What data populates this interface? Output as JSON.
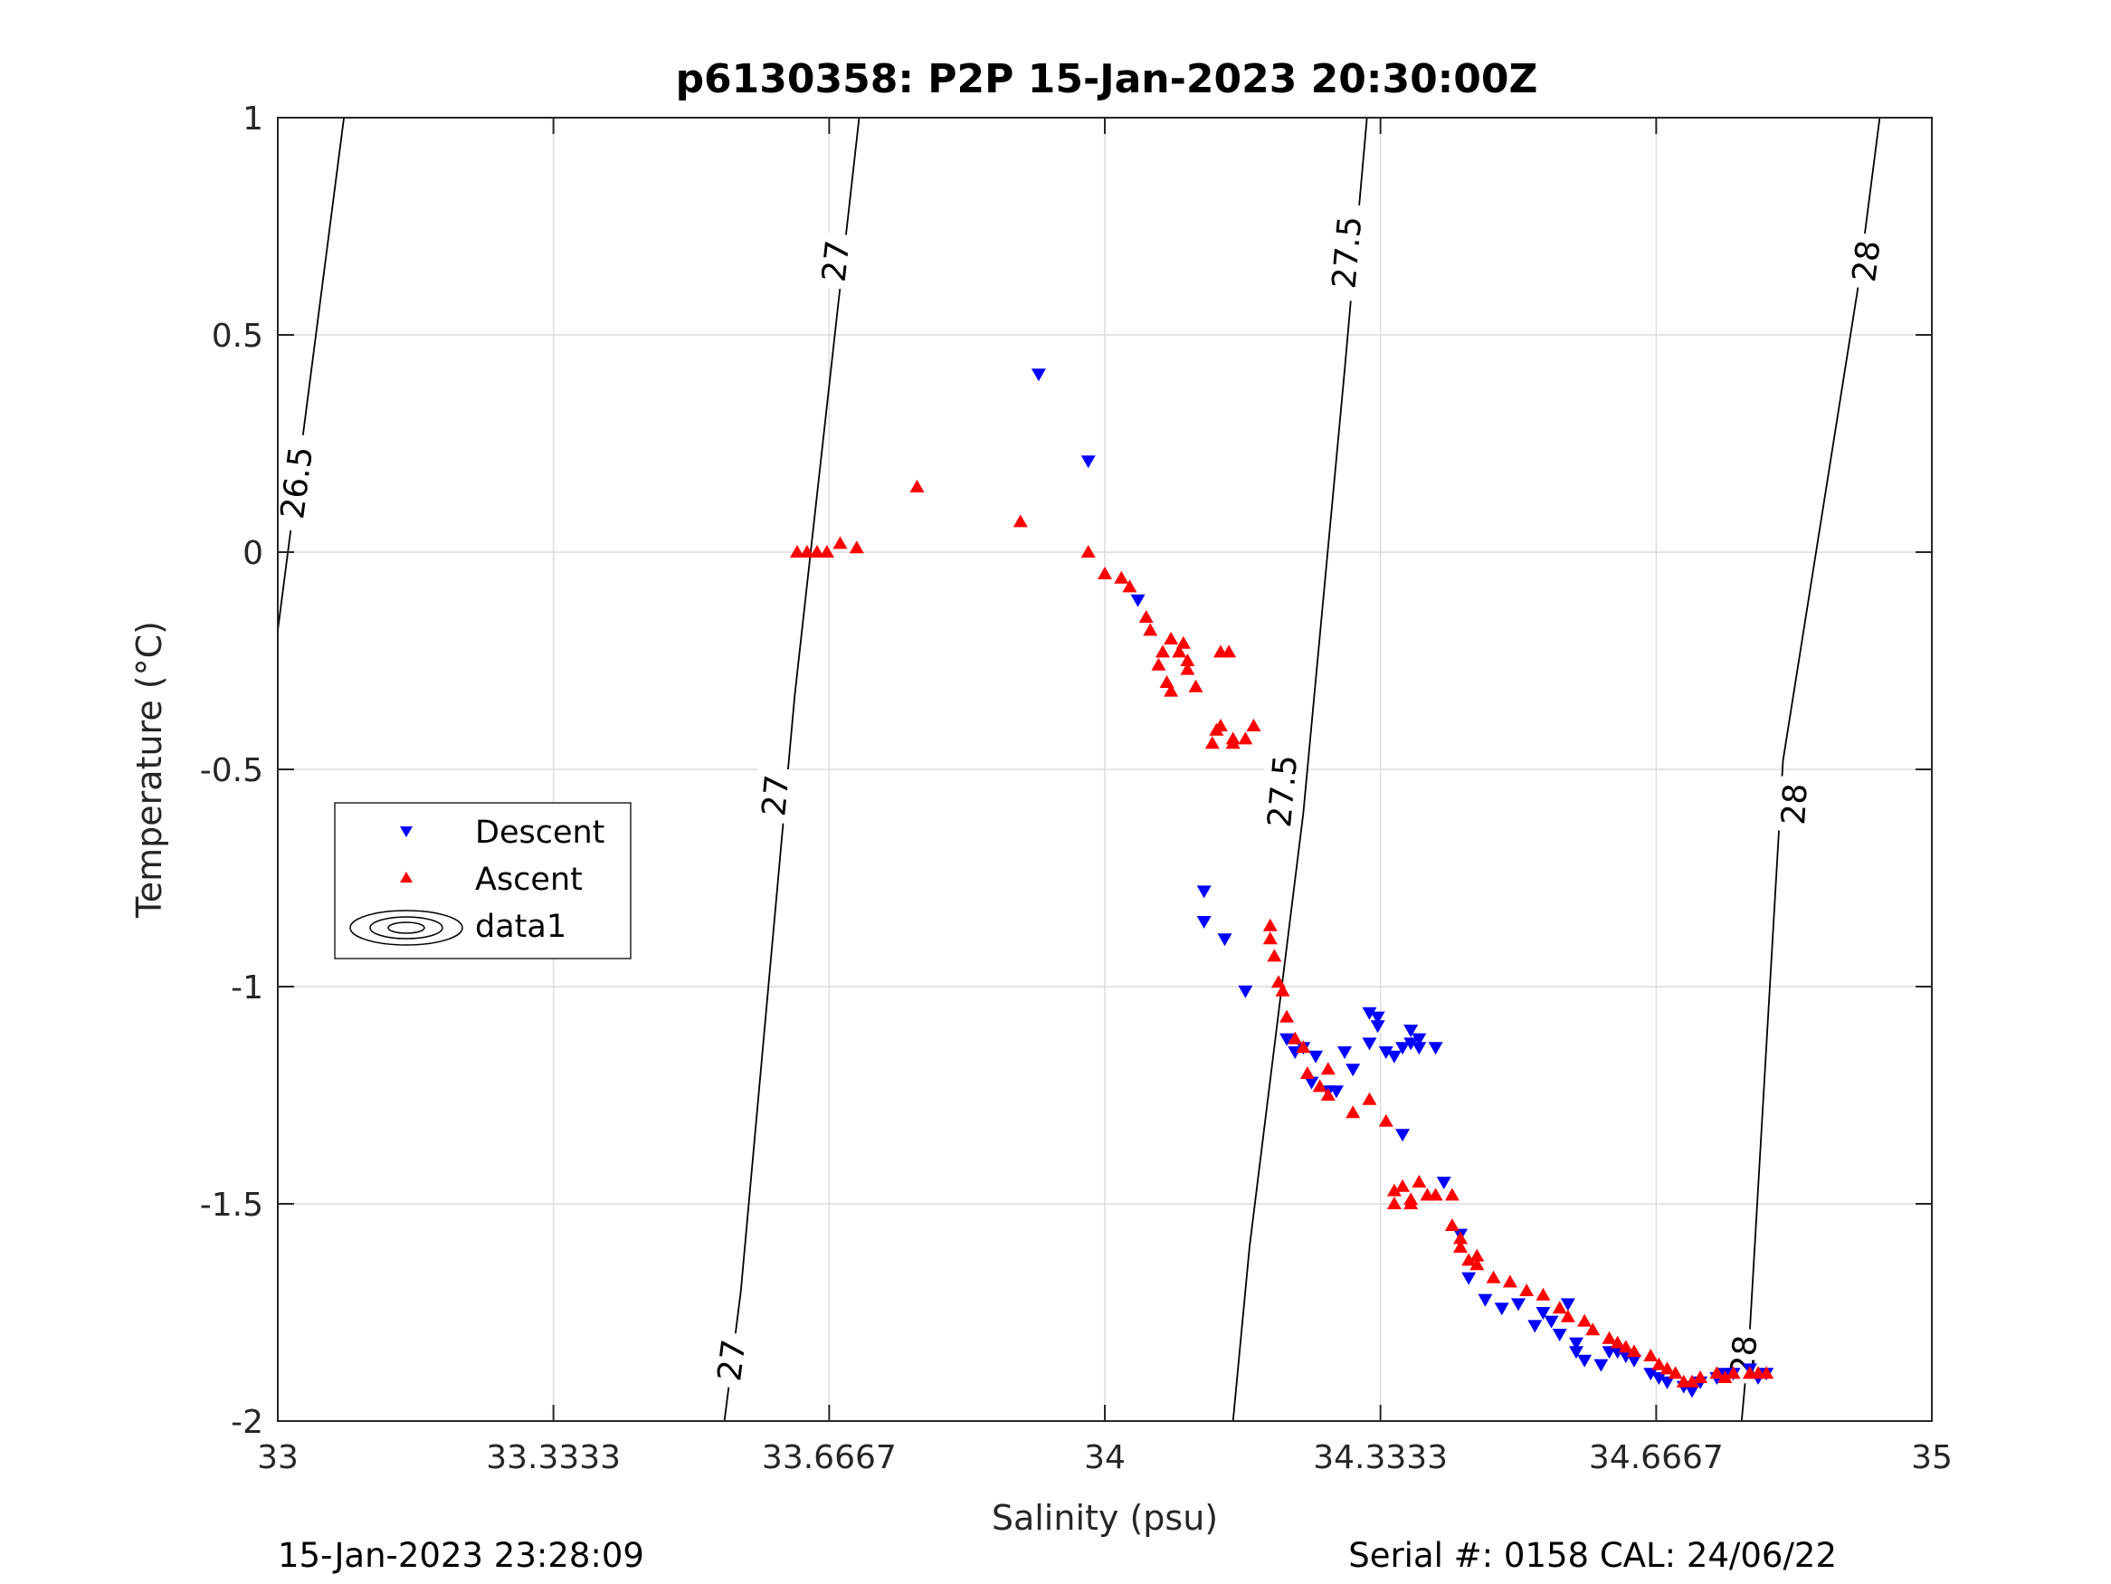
{
  "chart_data": {
    "type": "scatter",
    "title": "p6130358: P2P 15-Jan-2023 20:30:00Z",
    "xlabel": "Salinity (psu)",
    "ylabel": "Temperature (°C)",
    "xlim": [
      33,
      35
    ],
    "ylim": [
      -2,
      1
    ],
    "xticks": [
      "33",
      "33.3333",
      "33.6667",
      "34",
      "34.3333",
      "34.6667",
      "35"
    ],
    "xtick_values": [
      33,
      33.3333,
      33.6667,
      34,
      34.3333,
      34.6667,
      35
    ],
    "yticks": [
      "1",
      "0.5",
      "0",
      "-0.5",
      "-1",
      "-1.5",
      "-2"
    ],
    "ytick_values": [
      1,
      0.5,
      0,
      -0.5,
      -1,
      -1.5,
      -2
    ],
    "grid": true,
    "legend": {
      "placement": "left",
      "entries": [
        "Descent",
        "Ascent",
        "data1"
      ]
    },
    "colors": {
      "descent": "#0000ff",
      "ascent": "#ff0000",
      "contour": "#000000"
    },
    "density_contours": [
      {
        "level": "26.5",
        "points": [
          [
            33,
            -0.18
          ],
          [
            33.08,
            1.0
          ]
        ],
        "labels": [
          {
            "text": "26.5",
            "at": [
              33.022,
              0.16
            ]
          }
        ]
      },
      {
        "level": "27",
        "points": [
          [
            33.54,
            -2
          ],
          [
            33.56,
            -1.7
          ],
          [
            33.625,
            -0.33
          ],
          [
            33.677,
            0.56
          ],
          [
            33.703,
            1.0
          ]
        ],
        "labels": [
          {
            "text": "27",
            "at": [
              33.548,
              -1.86
            ]
          },
          {
            "text": "27",
            "at": [
              33.601,
              -0.56
            ]
          },
          {
            "text": "27",
            "at": [
              33.674,
              0.67
            ]
          }
        ]
      },
      {
        "level": "27.5",
        "points": [
          [
            34.155,
            -2
          ],
          [
            34.175,
            -1.6
          ],
          [
            34.24,
            -0.6
          ],
          [
            34.29,
            0.42
          ],
          [
            34.317,
            1.0
          ]
        ],
        "labels": [
          {
            "text": "27.5",
            "at": [
              34.214,
              -0.55
            ]
          },
          {
            "text": "27.5",
            "at": [
              34.292,
              0.69
            ]
          }
        ]
      },
      {
        "level": "28",
        "points": [
          [
            34.77,
            -2
          ],
          [
            34.78,
            -1.79
          ],
          [
            34.82,
            -0.48
          ],
          [
            34.91,
            0.6
          ],
          [
            34.937,
            1.0
          ]
        ],
        "labels": [
          {
            "text": "28",
            "at": [
              34.772,
              -1.85
            ]
          },
          {
            "text": "28",
            "at": [
              34.833,
              -0.58
            ]
          },
          {
            "text": "28",
            "at": [
              34.92,
              0.67
            ]
          }
        ]
      }
    ],
    "series": [
      {
        "name": "Descent",
        "marker": "triangle-down",
        "x": [
          33.92,
          33.98,
          34.04,
          34.12,
          34.12,
          34.145,
          34.17,
          34.22,
          34.23,
          34.24,
          34.255,
          34.25,
          34.27,
          34.28,
          34.29,
          34.3,
          34.32,
          34.32,
          34.33,
          34.33,
          34.34,
          34.35,
          34.36,
          34.36,
          34.37,
          34.37,
          34.38,
          34.38,
          34.4,
          34.41,
          34.43,
          34.44,
          34.46,
          34.48,
          34.5,
          34.52,
          34.53,
          34.54,
          34.55,
          34.56,
          34.57,
          34.57,
          34.58,
          34.6,
          34.61,
          34.62,
          34.63,
          34.64,
          34.66,
          34.67,
          34.68,
          34.7,
          34.71,
          34.72,
          34.74,
          34.75,
          34.76,
          34.78,
          34.79,
          34.8
        ],
        "y": [
          0.41,
          0.21,
          -0.11,
          -0.78,
          -0.85,
          -0.89,
          -1.01,
          -1.12,
          -1.15,
          -1.14,
          -1.16,
          -1.22,
          -1.24,
          -1.24,
          -1.15,
          -1.19,
          -1.06,
          -1.13,
          -1.07,
          -1.09,
          -1.15,
          -1.16,
          -1.14,
          -1.34,
          -1.1,
          -1.13,
          -1.14,
          -1.12,
          -1.14,
          -1.45,
          -1.57,
          -1.67,
          -1.72,
          -1.74,
          -1.73,
          -1.78,
          -1.75,
          -1.77,
          -1.8,
          -1.73,
          -1.82,
          -1.84,
          -1.86,
          -1.87,
          -1.84,
          -1.84,
          -1.85,
          -1.86,
          -1.89,
          -1.9,
          -1.91,
          -1.92,
          -1.93,
          -1.91,
          -1.9,
          -1.89,
          -1.89,
          -1.88,
          -1.9,
          -1.89
        ]
      },
      {
        "name": "Ascent",
        "marker": "triangle-up",
        "x": [
          33.628,
          33.64,
          33.652,
          33.664,
          33.68,
          33.7,
          33.773,
          33.898,
          33.98,
          34.0,
          34.02,
          34.03,
          34.05,
          34.055,
          34.065,
          34.07,
          34.075,
          34.08,
          34.08,
          34.09,
          34.095,
          34.1,
          34.1,
          34.11,
          34.13,
          34.135,
          34.14,
          34.14,
          34.15,
          34.155,
          34.155,
          34.17,
          34.18,
          34.2,
          34.2,
          34.205,
          34.21,
          34.215,
          34.22,
          34.23,
          34.24,
          34.245,
          34.26,
          34.27,
          34.27,
          34.3,
          34.32,
          34.34,
          34.35,
          34.35,
          34.36,
          34.37,
          34.37,
          34.38,
          34.39,
          34.4,
          34.42,
          34.42,
          34.43,
          34.43,
          34.44,
          34.45,
          34.45,
          34.47,
          34.49,
          34.51,
          34.53,
          34.55,
          34.56,
          34.58,
          34.59,
          34.61,
          34.62,
          34.63,
          34.64,
          34.66,
          34.67,
          34.68,
          34.69,
          34.7,
          34.71,
          34.72,
          34.74,
          34.75,
          34.76,
          34.78,
          34.79,
          34.8
        ],
        "y": [
          0.0,
          0.0,
          0.0,
          0.0,
          0.02,
          0.01,
          0.15,
          0.07,
          0.0,
          -0.05,
          -0.06,
          -0.08,
          -0.15,
          -0.18,
          -0.26,
          -0.23,
          -0.3,
          -0.32,
          -0.2,
          -0.23,
          -0.21,
          -0.25,
          -0.27,
          -0.31,
          -0.44,
          -0.41,
          -0.4,
          -0.23,
          -0.23,
          -0.43,
          -0.44,
          -0.43,
          -0.4,
          -0.86,
          -0.89,
          -0.93,
          -0.99,
          -1.01,
          -1.07,
          -1.12,
          -1.14,
          -1.2,
          -1.23,
          -1.19,
          -1.25,
          -1.29,
          -1.26,
          -1.31,
          -1.47,
          -1.5,
          -1.46,
          -1.49,
          -1.5,
          -1.45,
          -1.48,
          -1.48,
          -1.48,
          -1.55,
          -1.58,
          -1.6,
          -1.63,
          -1.62,
          -1.64,
          -1.67,
          -1.68,
          -1.7,
          -1.71,
          -1.74,
          -1.76,
          -1.77,
          -1.79,
          -1.81,
          -1.82,
          -1.83,
          -1.84,
          -1.85,
          -1.87,
          -1.88,
          -1.89,
          -1.91,
          -1.91,
          -1.9,
          -1.89,
          -1.9,
          -1.89,
          -1.89,
          -1.89,
          -1.89
        ]
      }
    ]
  },
  "footer": {
    "timestamp": "15-Jan-2023 23:28:09",
    "serial": "Serial #: 0158  CAL: 24/06/22"
  }
}
